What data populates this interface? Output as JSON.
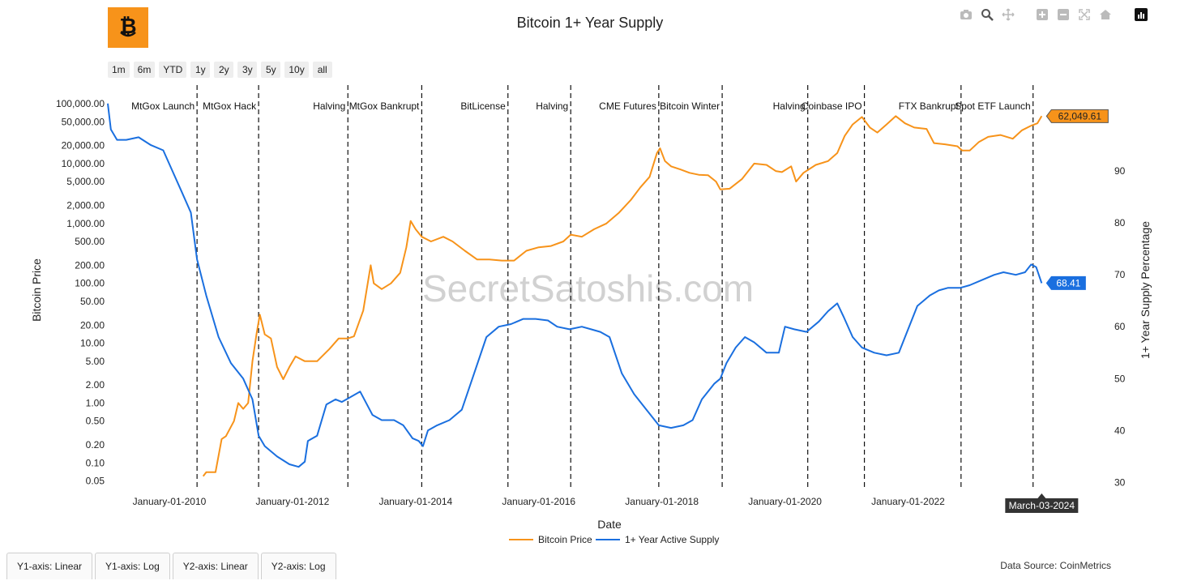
{
  "app": {
    "title": "Bitcoin 1+ Year Supply",
    "data_source": "Data Source: CoinMetrics",
    "watermark": "SecretSatoshis.com"
  },
  "range_buttons": [
    "1m",
    "6m",
    "YTD",
    "1y",
    "2y",
    "3y",
    "5y",
    "10y",
    "all"
  ],
  "axis_tabs": [
    "Y1-axis: Linear",
    "Y1-axis: Log",
    "Y2-axis: Linear",
    "Y2-axis: Log"
  ],
  "modebar_icons": [
    "camera-icon",
    "zoom-icon",
    "pan-icon",
    "zoom-in-icon",
    "zoom-out-icon",
    "autoscale-icon",
    "reset-axes-icon"
  ],
  "colors": {
    "price": "#f7931a",
    "supply": "#1a6fdf",
    "logo_bg": "#f7931a"
  },
  "chart_data": {
    "type": "line",
    "title": "Bitcoin 1+ Year Supply",
    "xlabel": "Date",
    "ylabel": "Bitcoin Price",
    "y2label": "1+ Year Supply Percentage",
    "xlim": [
      2009.0,
      2024.6
    ],
    "ylim": [
      0.035,
      150000
    ],
    "y_scale": "log",
    "y2lim": [
      28.5,
      105
    ],
    "y_ticks": [
      0.05,
      0.1,
      0.2,
      0.5,
      1,
      2,
      5,
      10,
      20,
      50,
      100,
      200,
      500,
      1000,
      2000,
      5000,
      10000,
      20000,
      50000,
      100000
    ],
    "y_tick_labels": [
      "0.05",
      "0.10",
      "0.20",
      "0.50",
      "1.00",
      "2.00",
      "5.00",
      "10.00",
      "20.00",
      "50.00",
      "100.00",
      "200.00",
      "500.00",
      "1,000.00",
      "2,000.00",
      "5,000.00",
      "10,000.00",
      "20,000.00",
      "50,000.00",
      "100,000.00"
    ],
    "y2_ticks": [
      30,
      40,
      50,
      60,
      70,
      80,
      90
    ],
    "x_ticks": [
      2010,
      2012,
      2014,
      2016,
      2018,
      2020,
      2022
    ],
    "x_tick_labels": [
      "January-01-2010",
      "January-01-2012",
      "January-01-2014",
      "January-01-2016",
      "January-01-2018",
      "January-01-2020",
      "January-01-2022"
    ],
    "events": [
      {
        "label": "MtGox Launch",
        "x": 2010.45
      },
      {
        "label": "MtGox Hack",
        "x": 2011.45
      },
      {
        "label": "Halving",
        "x": 2012.9
      },
      {
        "label": "MtGox Bankrupt",
        "x": 2014.1
      },
      {
        "label": "BitLicense",
        "x": 2015.5
      },
      {
        "label": "Halving",
        "x": 2016.52
      },
      {
        "label": "CME Futures",
        "x": 2017.95
      },
      {
        "label": "Bitcoin Winter",
        "x": 2018.98
      },
      {
        "label": "Halving",
        "x": 2020.37
      },
      {
        "label": "Coinbase IPO",
        "x": 2021.29
      },
      {
        "label": "FTX Bankrupt",
        "x": 2022.86
      },
      {
        "label": "Spot ETF Launch",
        "x": 2024.03
      }
    ],
    "series": [
      {
        "name": "Bitcoin Price",
        "axis": "y1",
        "color": "#f7931a",
        "last_value_label": "62,049.61",
        "points": [
          [
            2010.55,
            0.06
          ],
          [
            2010.6,
            0.07
          ],
          [
            2010.75,
            0.07
          ],
          [
            2010.85,
            0.25
          ],
          [
            2010.92,
            0.28
          ],
          [
            2011.05,
            0.5
          ],
          [
            2011.12,
            1.0
          ],
          [
            2011.2,
            0.8
          ],
          [
            2011.28,
            1.0
          ],
          [
            2011.35,
            5
          ],
          [
            2011.42,
            15
          ],
          [
            2011.47,
            30
          ],
          [
            2011.55,
            14
          ],
          [
            2011.65,
            12
          ],
          [
            2011.75,
            4
          ],
          [
            2011.85,
            2.5
          ],
          [
            2011.95,
            4
          ],
          [
            2012.05,
            6
          ],
          [
            2012.2,
            5
          ],
          [
            2012.4,
            5
          ],
          [
            2012.6,
            8
          ],
          [
            2012.75,
            12
          ],
          [
            2012.9,
            12
          ],
          [
            2013.0,
            13
          ],
          [
            2013.15,
            35
          ],
          [
            2013.27,
            200
          ],
          [
            2013.32,
            100
          ],
          [
            2013.45,
            80
          ],
          [
            2013.6,
            100
          ],
          [
            2013.75,
            150
          ],
          [
            2013.85,
            400
          ],
          [
            2013.92,
            1100
          ],
          [
            2014.0,
            800
          ],
          [
            2014.1,
            600
          ],
          [
            2014.25,
            500
          ],
          [
            2014.45,
            600
          ],
          [
            2014.6,
            500
          ],
          [
            2014.8,
            350
          ],
          [
            2015.0,
            250
          ],
          [
            2015.2,
            250
          ],
          [
            2015.4,
            240
          ],
          [
            2015.6,
            240
          ],
          [
            2015.8,
            350
          ],
          [
            2016.0,
            400
          ],
          [
            2016.2,
            420
          ],
          [
            2016.4,
            500
          ],
          [
            2016.52,
            650
          ],
          [
            2016.7,
            600
          ],
          [
            2016.9,
            800
          ],
          [
            2017.1,
            1000
          ],
          [
            2017.3,
            1500
          ],
          [
            2017.5,
            2500
          ],
          [
            2017.65,
            4000
          ],
          [
            2017.8,
            6000
          ],
          [
            2017.92,
            15000
          ],
          [
            2017.97,
            18000
          ],
          [
            2018.05,
            11000
          ],
          [
            2018.15,
            9000
          ],
          [
            2018.3,
            8000
          ],
          [
            2018.45,
            7000
          ],
          [
            2018.6,
            6500
          ],
          [
            2018.75,
            6400
          ],
          [
            2018.88,
            5000
          ],
          [
            2018.95,
            3700
          ],
          [
            2019.1,
            3800
          ],
          [
            2019.3,
            5500
          ],
          [
            2019.5,
            10000
          ],
          [
            2019.7,
            9500
          ],
          [
            2019.85,
            7500
          ],
          [
            2019.95,
            7200
          ],
          [
            2020.1,
            9000
          ],
          [
            2020.18,
            5000
          ],
          [
            2020.3,
            7000
          ],
          [
            2020.5,
            9500
          ],
          [
            2020.7,
            11000
          ],
          [
            2020.85,
            15000
          ],
          [
            2020.97,
            29000
          ],
          [
            2021.1,
            45000
          ],
          [
            2021.25,
            60000
          ],
          [
            2021.38,
            40000
          ],
          [
            2021.5,
            33000
          ],
          [
            2021.65,
            45000
          ],
          [
            2021.8,
            62000
          ],
          [
            2021.95,
            47000
          ],
          [
            2022.1,
            40000
          ],
          [
            2022.3,
            38000
          ],
          [
            2022.42,
            22000
          ],
          [
            2022.6,
            21000
          ],
          [
            2022.8,
            19500
          ],
          [
            2022.88,
            16500
          ],
          [
            2023.0,
            16500
          ],
          [
            2023.15,
            23000
          ],
          [
            2023.3,
            28000
          ],
          [
            2023.5,
            30000
          ],
          [
            2023.7,
            26000
          ],
          [
            2023.85,
            36000
          ],
          [
            2024.0,
            43000
          ],
          [
            2024.1,
            47000
          ],
          [
            2024.17,
            62049.61
          ]
        ]
      },
      {
        "name": "1+ Year Active Supply",
        "axis": "y2",
        "color": "#1a6fdf",
        "last_value_label": "68.41",
        "points": [
          [
            2009.0,
            103
          ],
          [
            2009.05,
            98
          ],
          [
            2009.15,
            96
          ],
          [
            2009.3,
            96
          ],
          [
            2009.5,
            96.5
          ],
          [
            2009.7,
            95
          ],
          [
            2009.9,
            94
          ],
          [
            2010.05,
            90
          ],
          [
            2010.2,
            86
          ],
          [
            2010.35,
            82
          ],
          [
            2010.45,
            73
          ],
          [
            2010.6,
            66
          ],
          [
            2010.8,
            58
          ],
          [
            2011.0,
            53
          ],
          [
            2011.2,
            50
          ],
          [
            2011.35,
            46
          ],
          [
            2011.45,
            39
          ],
          [
            2011.55,
            37
          ],
          [
            2011.75,
            35
          ],
          [
            2011.95,
            33.5
          ],
          [
            2012.1,
            33
          ],
          [
            2012.2,
            34
          ],
          [
            2012.25,
            38
          ],
          [
            2012.4,
            39
          ],
          [
            2012.55,
            45
          ],
          [
            2012.7,
            46
          ],
          [
            2012.8,
            45.5
          ],
          [
            2012.95,
            46.5
          ],
          [
            2013.1,
            47.5
          ],
          [
            2013.3,
            43
          ],
          [
            2013.45,
            42
          ],
          [
            2013.65,
            42
          ],
          [
            2013.8,
            41
          ],
          [
            2013.95,
            38.5
          ],
          [
            2014.05,
            38
          ],
          [
            2014.12,
            37
          ],
          [
            2014.2,
            40
          ],
          [
            2014.35,
            41
          ],
          [
            2014.55,
            42
          ],
          [
            2014.75,
            44
          ],
          [
            2014.95,
            51
          ],
          [
            2015.15,
            58
          ],
          [
            2015.35,
            60
          ],
          [
            2015.55,
            60.5
          ],
          [
            2015.75,
            61.5
          ],
          [
            2015.95,
            61.5
          ],
          [
            2016.15,
            61.2
          ],
          [
            2016.3,
            60
          ],
          [
            2016.5,
            59.5
          ],
          [
            2016.7,
            60
          ],
          [
            2016.85,
            59.5
          ],
          [
            2017.0,
            59
          ],
          [
            2017.15,
            58
          ],
          [
            2017.35,
            51
          ],
          [
            2017.55,
            47
          ],
          [
            2017.75,
            44
          ],
          [
            2017.95,
            41
          ],
          [
            2018.15,
            40.5
          ],
          [
            2018.35,
            41
          ],
          [
            2018.5,
            42
          ],
          [
            2018.65,
            46
          ],
          [
            2018.85,
            49
          ],
          [
            2018.95,
            50
          ],
          [
            2019.05,
            53
          ],
          [
            2019.2,
            56
          ],
          [
            2019.35,
            58
          ],
          [
            2019.5,
            57
          ],
          [
            2019.7,
            55
          ],
          [
            2019.9,
            55
          ],
          [
            2020.0,
            60
          ],
          [
            2020.15,
            59.5
          ],
          [
            2020.35,
            59
          ],
          [
            2020.55,
            61
          ],
          [
            2020.7,
            63
          ],
          [
            2020.85,
            64.5
          ],
          [
            2020.95,
            62
          ],
          [
            2021.1,
            58
          ],
          [
            2021.25,
            56
          ],
          [
            2021.45,
            55
          ],
          [
            2021.65,
            54.5
          ],
          [
            2021.85,
            55
          ],
          [
            2021.95,
            58
          ],
          [
            2022.15,
            64
          ],
          [
            2022.35,
            66
          ],
          [
            2022.5,
            67
          ],
          [
            2022.65,
            67.5
          ],
          [
            2022.85,
            67.5
          ],
          [
            2023.0,
            68
          ],
          [
            2023.2,
            69
          ],
          [
            2023.4,
            70
          ],
          [
            2023.55,
            70.5
          ],
          [
            2023.75,
            70
          ],
          [
            2023.9,
            70.5
          ],
          [
            2024.0,
            72
          ],
          [
            2024.08,
            71.5
          ],
          [
            2024.17,
            68.41
          ]
        ]
      }
    ],
    "hover_label": "March-03-2024",
    "hover_x": 2024.17
  }
}
